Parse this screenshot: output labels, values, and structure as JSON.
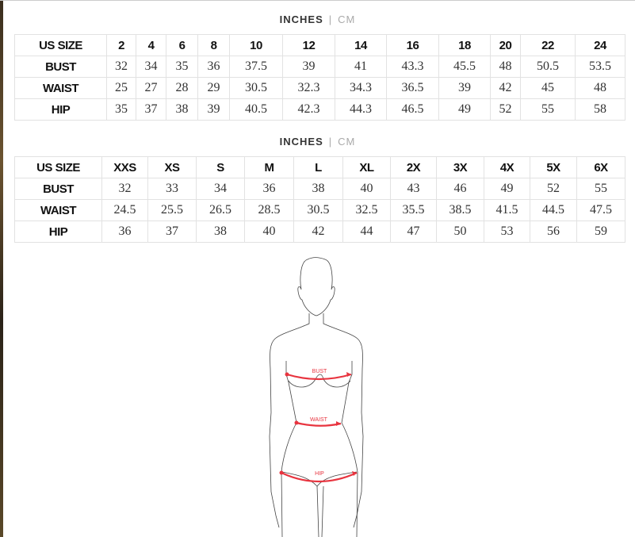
{
  "unit_toggle": {
    "active": "INCHES",
    "inactive": "CM"
  },
  "table_numeric": {
    "header": [
      "US SIZE",
      "2",
      "4",
      "6",
      "8",
      "10",
      "12",
      "14",
      "16",
      "18",
      "20",
      "22",
      "24"
    ],
    "rows": [
      [
        "BUST",
        "32",
        "34",
        "35",
        "36",
        "37.5",
        "39",
        "41",
        "43.3",
        "45.5",
        "48",
        "50.5",
        "53.5"
      ],
      [
        "WAIST",
        "25",
        "27",
        "28",
        "29",
        "30.5",
        "32.3",
        "34.3",
        "36.5",
        "39",
        "42",
        "45",
        "48"
      ],
      [
        "HIP",
        "35",
        "37",
        "38",
        "39",
        "40.5",
        "42.3",
        "44.3",
        "46.5",
        "49",
        "52",
        "55",
        "58"
      ]
    ]
  },
  "table_letter": {
    "header": [
      "US SIZE",
      "XXS",
      "XS",
      "S",
      "M",
      "L",
      "XL",
      "2X",
      "3X",
      "4X",
      "5X",
      "6X"
    ],
    "rows": [
      [
        "BUST",
        "32",
        "33",
        "34",
        "36",
        "38",
        "40",
        "43",
        "46",
        "49",
        "52",
        "55"
      ],
      [
        "WAIST",
        "24.5",
        "25.5",
        "26.5",
        "28.5",
        "30.5",
        "32.5",
        "35.5",
        "38.5",
        "41.5",
        "44.5",
        "47.5"
      ],
      [
        "HIP",
        "36",
        "37",
        "38",
        "40",
        "42",
        "44",
        "47",
        "50",
        "53",
        "56",
        "59"
      ]
    ]
  },
  "figure": {
    "labels": {
      "bust": "BUST",
      "waist": "WAIST",
      "hip": "HIP"
    },
    "accent": "#e8343f"
  }
}
